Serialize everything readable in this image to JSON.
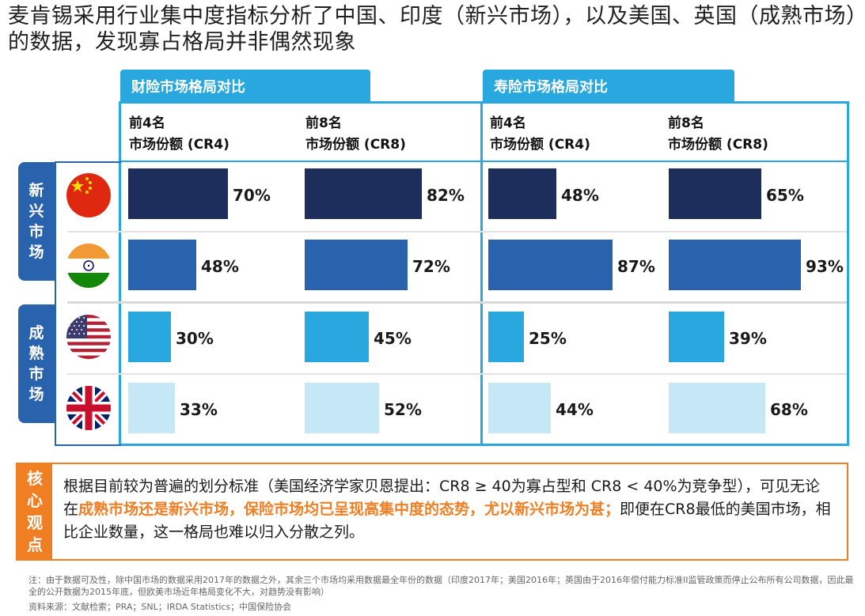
{
  "title": "麦肯锡采用行业集中度指标分析了中国、印度（新兴市场），以及美国、英国（成熟市场）的数据，发现寡占格局并非偶然现象",
  "colors": {
    "accent": "#29a7df",
    "navy": "#1d2d5c",
    "blue_dark": "#2962ad",
    "blue_mid": "#29a7df",
    "blue_light": "#c6e7f6",
    "orange": "#f07e22"
  },
  "groups": [
    {
      "label": [
        "新",
        "兴",
        "市",
        "场"
      ]
    },
    {
      "label": [
        "成",
        "熟",
        "市",
        "场"
      ]
    }
  ],
  "chart_data": [
    {
      "type": "bar",
      "title": "财险市场格局对比",
      "series": [
        {
          "name": "前4名 市场份额 (CR4)",
          "header": [
            "前4名",
            "市场份额 (CR4)"
          ],
          "values": [
            70,
            48,
            30,
            33
          ]
        },
        {
          "name": "前8名 市场份额 (CR8)",
          "header": [
            "前8名",
            "市场份额 (CR8)"
          ],
          "values": [
            82,
            72,
            45,
            52
          ]
        }
      ],
      "categories": [
        "China",
        "India",
        "USA",
        "UK"
      ],
      "labels": [
        "70%",
        "48%",
        "30%",
        "33%",
        "82%",
        "72%",
        "45%",
        "52%"
      ]
    },
    {
      "type": "bar",
      "title": "寿险市场格局对比",
      "series": [
        {
          "name": "前4名 市场份额 (CR4)",
          "header": [
            "前4名",
            "市场份额 (CR4)"
          ],
          "values": [
            48,
            87,
            25,
            44
          ]
        },
        {
          "name": "前8名 市场份额 (CR8)",
          "header": [
            "前8名",
            "市场份额 (CR8)"
          ],
          "values": [
            65,
            93,
            39,
            68
          ]
        }
      ],
      "categories": [
        "China",
        "India",
        "USA",
        "UK"
      ],
      "labels": [
        "48%",
        "87%",
        "25%",
        "44%",
        "65%",
        "93%",
        "39%",
        "68%"
      ]
    }
  ],
  "insight": {
    "tag": [
      "核",
      "心",
      "观",
      "点"
    ],
    "text_a": "根据目前较为普遍的划分标准（美国经济学家贝恩提出：CR8 ≥ 40为寡占型和 CR8 < 40%为竞争型），可见无论在",
    "text_b": "成熟市场还是新兴市场，保险市场均已呈现高集中度的态势，尤以新兴市场为甚；",
    "text_c": "即便在CR8最低的美国市场，相比企业数量，这一格局也难以归入分散之列。"
  },
  "note": "注：由于数据可及性，除中国市场的数据采用2017年的数据之外，其余三个市场均采用数据最全年份的数据（印度2017年；美国2016年；英国由于2016年偿付能力标准II监管政策而停止公布所有公司数据，因此最全的公开数据为2015年底，但欧美市场近年格局变化不大，对趋势没有影响）",
  "source": "资料来源：文献检索；PRA；SNL；IRDA Statistics；中国保险协会"
}
